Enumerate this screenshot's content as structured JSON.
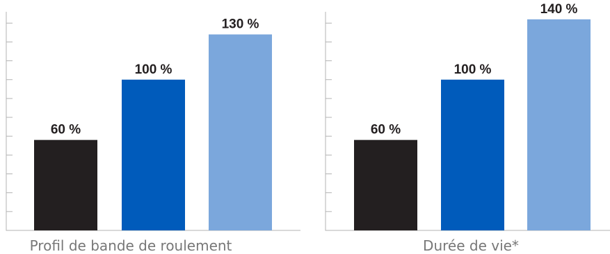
{
  "chart_data": [
    {
      "type": "bar",
      "title": "Profil de bande de roulement",
      "categories": [
        "",
        "",
        ""
      ],
      "values": [
        60,
        100,
        130
      ],
      "value_labels": [
        "60 %",
        "100 %",
        "130 %"
      ],
      "colors": [
        "#231f20",
        "#005bbb",
        "#7ba7dc"
      ],
      "ylim": [
        0,
        145
      ],
      "y_tick_step": 12.5,
      "grid": false,
      "legend": "none"
    },
    {
      "type": "bar",
      "title": "Durée de vie*",
      "categories": [
        "",
        "",
        ""
      ],
      "values": [
        60,
        100,
        140
      ],
      "value_labels": [
        "60 %",
        "100 %",
        "140 %"
      ],
      "colors": [
        "#231f20",
        "#005bbb",
        "#7ba7dc"
      ],
      "ylim": [
        0,
        145
      ],
      "y_tick_step": 12.5,
      "grid": false,
      "legend": "none"
    }
  ]
}
